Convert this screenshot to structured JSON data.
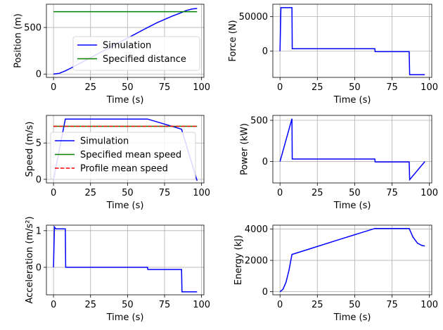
{
  "chart_data": [
    {
      "type": "line",
      "xlabel": "Time (s)",
      "ylabel": "Position (m)",
      "xlim": [
        -4.8,
        101.6
      ],
      "ylim": [
        -36,
        750
      ],
      "xticks": [
        0,
        25,
        50,
        75,
        100
      ],
      "yticks": [
        0,
        500
      ],
      "grid": true,
      "legend": "lower-right",
      "series": [
        {
          "name": "Simulation",
          "color": "#0000ff",
          "x": [
            0,
            4,
            8,
            12,
            20,
            30,
            40,
            50,
            60,
            64,
            70,
            80,
            86,
            90,
            94,
            97
          ],
          "y": [
            0,
            8,
            34,
            66,
            134,
            218,
            302,
            386,
            470,
            503,
            552,
            621,
            658,
            684,
            700,
            704
          ]
        },
        {
          "name": "Specified distance",
          "color": "#008000",
          "x": [
            0,
            97
          ],
          "y": [
            670,
            670
          ]
        }
      ]
    },
    {
      "type": "line",
      "xlabel": "Time (s)",
      "ylabel": "Force (N)",
      "xlim": [
        -4.8,
        101.6
      ],
      "ylim": [
        -38000,
        68000
      ],
      "xticks": [
        0,
        25,
        50,
        75,
        100
      ],
      "yticks": [
        0,
        50000
      ],
      "grid": true,
      "series": [
        {
          "name": "",
          "color": "#0000ff",
          "x": [
            0,
            0.6,
            8,
            8.2,
            63.5,
            63.7,
            86.5,
            86.8,
            97
          ],
          "y": [
            0,
            63000,
            63000,
            3500,
            3500,
            -700,
            -700,
            -34000,
            -34000
          ]
        }
      ]
    },
    {
      "type": "line",
      "xlabel": "Time (s)",
      "ylabel": "Speed (m/s)",
      "xlim": [
        -4.8,
        101.6
      ],
      "ylim": [
        -0.5,
        8.8
      ],
      "xticks": [
        0,
        25,
        50,
        75,
        100
      ],
      "yticks": [
        0,
        5
      ],
      "grid": true,
      "legend": "lower-left",
      "series": [
        {
          "name": "Simulation",
          "color": "#0000ff",
          "x": [
            0,
            8,
            63.5,
            86.5,
            97
          ],
          "y": [
            0,
            8.3,
            8.3,
            6.9,
            -0.2
          ]
        },
        {
          "name": "Specified mean speed",
          "color": "#008000",
          "x": [
            0,
            97
          ],
          "y": [
            7.3,
            7.3
          ]
        },
        {
          "name": "Profile mean speed",
          "color": "#ff0000",
          "dashed": true,
          "x": [
            0,
            97
          ],
          "y": [
            7.3,
            7.3
          ]
        }
      ]
    },
    {
      "type": "line",
      "xlabel": "Time (s)",
      "ylabel": "Power (kW)",
      "xlim": [
        -4.8,
        101.6
      ],
      "ylim": [
        -260,
        560
      ],
      "xticks": [
        0,
        25,
        50,
        75,
        100
      ],
      "yticks": [
        0,
        500
      ],
      "grid": true,
      "series": [
        {
          "name": "",
          "color": "#0000ff",
          "x": [
            0,
            8,
            8.2,
            63.5,
            63.7,
            86.5,
            86.8,
            97
          ],
          "y": [
            0,
            520,
            30,
            30,
            -5,
            -5,
            -220,
            0
          ]
        }
      ]
    },
    {
      "type": "line",
      "xlabel": "Time (s)",
      "ylabel": "Acceleration (m/s²)",
      "xlim": [
        -4.8,
        101.6
      ],
      "ylim": [
        -0.75,
        1.15
      ],
      "xticks": [
        0,
        25,
        50,
        75,
        100
      ],
      "yticks": [
        0,
        1
      ],
      "grid": true,
      "series": [
        {
          "name": "",
          "color": "#0000ff",
          "x": [
            0,
            0.6,
            1.5,
            8,
            8.2,
            63.5,
            63.7,
            86.5,
            86.8,
            97
          ],
          "y": [
            0,
            1.1,
            1.05,
            1.05,
            0,
            0,
            -0.06,
            -0.06,
            -0.67,
            -0.67
          ]
        }
      ]
    },
    {
      "type": "line",
      "xlabel": "Time (s)",
      "ylabel": "Energy (kJ)",
      "xlim": [
        -4.8,
        101.6
      ],
      "ylim": [
        -200,
        4250
      ],
      "xticks": [
        0,
        25,
        50,
        75,
        100
      ],
      "yticks": [
        0,
        2000,
        4000
      ],
      "grid": true,
      "series": [
        {
          "name": "",
          "color": "#0000ff",
          "x": [
            0,
            2,
            4,
            6,
            8,
            20,
            40,
            63.5,
            70,
            80,
            86.5,
            89,
            92,
            95,
            97
          ],
          "y": [
            0,
            150,
            600,
            1350,
            2380,
            2740,
            3340,
            4040,
            4040,
            4040,
            4040,
            3500,
            3100,
            2950,
            2920
          ]
        }
      ]
    }
  ]
}
